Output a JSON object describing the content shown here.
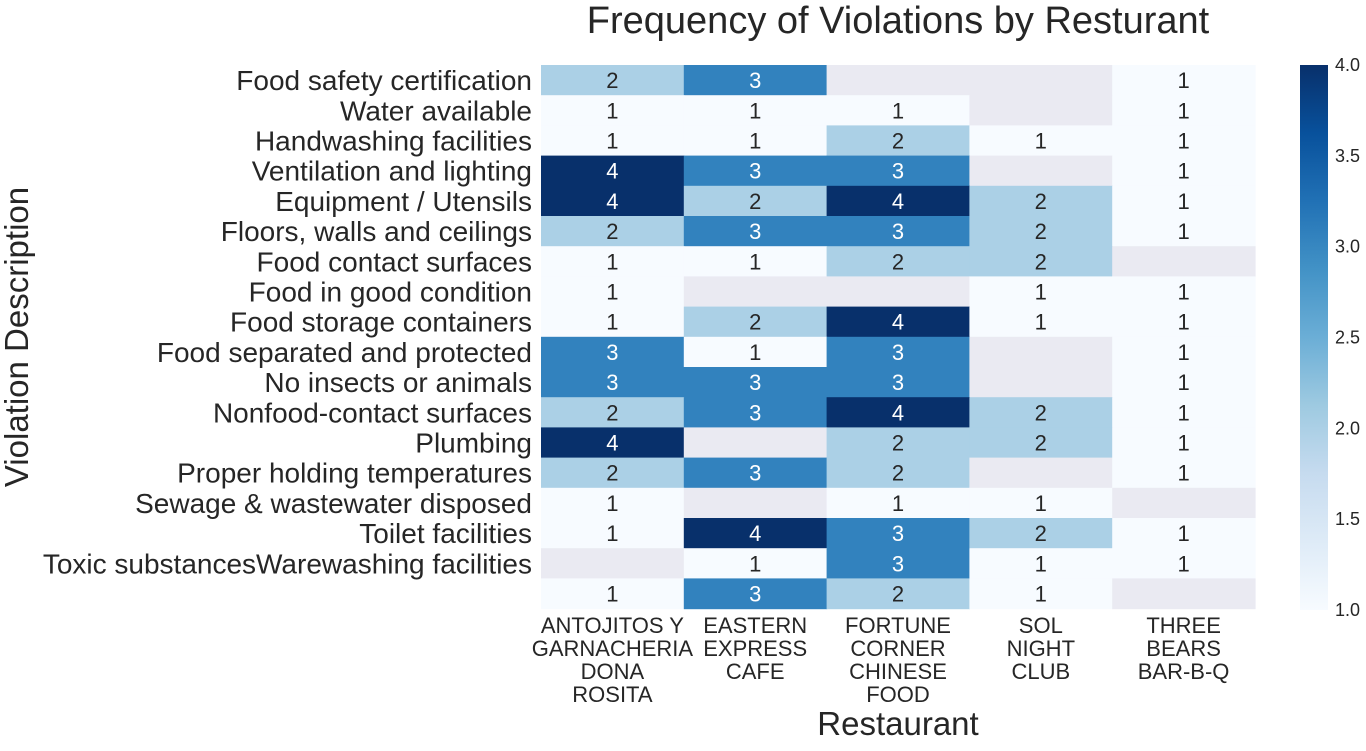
{
  "chart_data": {
    "type": "heatmap",
    "title": "Frequency of Violations by Resturant",
    "xlabel": "Restaurant",
    "ylabel": "Violation Description",
    "x_categories": [
      [
        "ANTOJITOS Y",
        "GARNACHERIA",
        "DONA",
        "ROSITA"
      ],
      [
        "EASTERN",
        "EXPRESS",
        "CAFE"
      ],
      [
        "FORTUNE",
        "CORNER",
        "CHINESE",
        "FOOD"
      ],
      [
        "SOL",
        "NIGHT",
        "CLUB"
      ],
      [
        "THREE",
        "BEARS",
        "BAR-B-Q"
      ]
    ],
    "y_categories": [
      "Food safety certification",
      "Water available",
      "Handwashing facilities",
      "Ventilation and lighting",
      "Equipment / Utensils",
      "Floors, walls and ceilings",
      "Food contact surfaces",
      "Food in good condition",
      "Food storage containers",
      "Food separated and protected",
      "No insects or animals",
      "Nonfood-contact surfaces",
      "Plumbing",
      "Proper holding temperatures",
      "Sewage & wastewater disposed",
      "Toilet facilities",
      "Toxic substancesWarewashing facilities",
      ""
    ],
    "values": [
      [
        2,
        3,
        null,
        null,
        1
      ],
      [
        1,
        1,
        1,
        null,
        1
      ],
      [
        1,
        1,
        2,
        1,
        1
      ],
      [
        4,
        3,
        3,
        null,
        1
      ],
      [
        4,
        2,
        4,
        2,
        1
      ],
      [
        2,
        3,
        3,
        2,
        1
      ],
      [
        1,
        1,
        2,
        2,
        null
      ],
      [
        1,
        null,
        null,
        1,
        1
      ],
      [
        1,
        2,
        4,
        1,
        1
      ],
      [
        3,
        1,
        3,
        null,
        1
      ],
      [
        3,
        3,
        3,
        null,
        1
      ],
      [
        2,
        3,
        4,
        2,
        1
      ],
      [
        4,
        null,
        2,
        2,
        1
      ],
      [
        2,
        3,
        2,
        null,
        1
      ],
      [
        1,
        null,
        1,
        1,
        null
      ],
      [
        1,
        4,
        3,
        2,
        1
      ],
      [
        null,
        1,
        3,
        1,
        1
      ],
      [
        1,
        3,
        2,
        1,
        null
      ]
    ],
    "colorbar": {
      "range": [
        1.0,
        4.0
      ],
      "ticks": [
        "1.0",
        "1.5",
        "2.0",
        "2.5",
        "3.0",
        "3.5",
        "4.0"
      ]
    },
    "colors": {
      "1": "#f7fbff",
      "2": "#abd0e6",
      "3": "#3282be",
      "4": "#08306b",
      "missing": "#eaeaf2"
    }
  }
}
